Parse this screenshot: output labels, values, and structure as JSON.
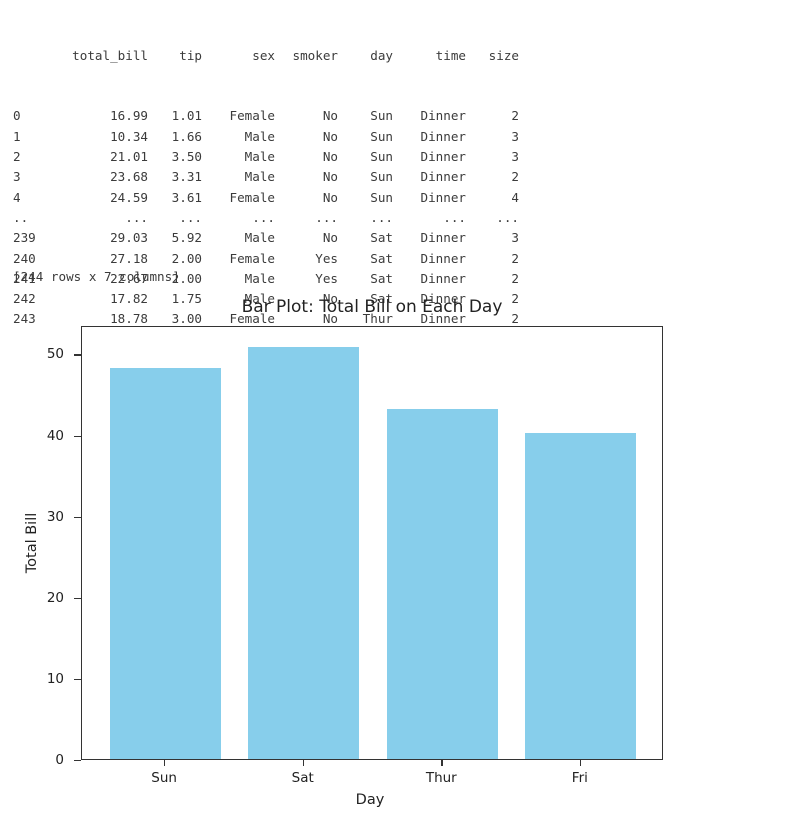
{
  "dataframe": {
    "columns": [
      "",
      "total_bill",
      "tip",
      "sex",
      "smoker",
      "day",
      "time",
      "size"
    ],
    "rows": [
      [
        "0",
        "16.99",
        "1.01",
        "Female",
        "No",
        "Sun",
        "Dinner",
        "2"
      ],
      [
        "1",
        "10.34",
        "1.66",
        "Male",
        "No",
        "Sun",
        "Dinner",
        "3"
      ],
      [
        "2",
        "21.01",
        "3.50",
        "Male",
        "No",
        "Sun",
        "Dinner",
        "3"
      ],
      [
        "3",
        "23.68",
        "3.31",
        "Male",
        "No",
        "Sun",
        "Dinner",
        "2"
      ],
      [
        "4",
        "24.59",
        "3.61",
        "Female",
        "No",
        "Sun",
        "Dinner",
        "4"
      ],
      [
        "..",
        "...",
        "...",
        "...",
        "...",
        "...",
        "...",
        "..."
      ],
      [
        "239",
        "29.03",
        "5.92",
        "Male",
        "No",
        "Sat",
        "Dinner",
        "3"
      ],
      [
        "240",
        "27.18",
        "2.00",
        "Female",
        "Yes",
        "Sat",
        "Dinner",
        "2"
      ],
      [
        "241",
        "22.67",
        "2.00",
        "Male",
        "Yes",
        "Sat",
        "Dinner",
        "2"
      ],
      [
        "242",
        "17.82",
        "1.75",
        "Male",
        "No",
        "Sat",
        "Dinner",
        "2"
      ],
      [
        "243",
        "18.78",
        "3.00",
        "Female",
        "No",
        "Thur",
        "Dinner",
        "2"
      ]
    ],
    "summary": "[244 rows x 7 columns]"
  },
  "chart_data": {
    "type": "bar",
    "title": "Bar Plot: Total Bill on Each Day",
    "xlabel": "Day",
    "ylabel": "Total Bill",
    "categories": [
      "Sun",
      "Sat",
      "Thur",
      "Fri"
    ],
    "values": [
      48.2,
      50.8,
      43.1,
      40.2
    ],
    "ylim": [
      0,
      53.5
    ],
    "yticks": [
      0,
      10,
      20,
      30,
      40,
      50
    ],
    "ytick_labels": [
      "0",
      "10",
      "20",
      "30",
      "40",
      "50"
    ],
    "color": "#87ceeb",
    "grid": false,
    "legend": null
  }
}
